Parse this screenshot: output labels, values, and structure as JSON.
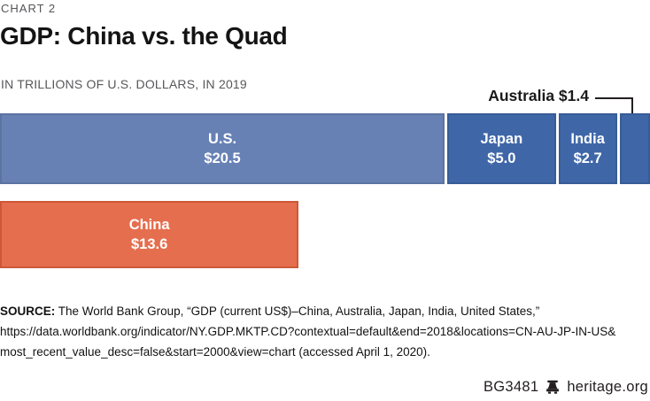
{
  "page": {
    "kicker": "CHART 2",
    "title": "GDP: China vs. the Quad",
    "subtitle": "IN TRILLIONS OF U.S. DOLLARS, IN 2019"
  },
  "chart_data": {
    "type": "bar",
    "orientation": "horizontal",
    "stacked": true,
    "title": "GDP: China vs. the Quad",
    "subtitle": "IN TRILLIONS OF U.S. DOLLARS, IN 2019",
    "unit": "trillions of U.S. dollars",
    "year": 2019,
    "gridlines": false,
    "x_scale_total": 29.6,
    "series": [
      {
        "name": "Quad",
        "segments": [
          {
            "label": "U.S.",
            "value": 20.5,
            "display": "$20.5",
            "color": "#6781b5"
          },
          {
            "label": "Japan",
            "value": 5.0,
            "display": "$5.0",
            "color": "#3f67a8"
          },
          {
            "label": "India",
            "value": 2.7,
            "display": "$2.7",
            "color": "#3f67a8"
          },
          {
            "label": "Australia",
            "value": 1.4,
            "display": "$1.4",
            "color": "#3f67a8",
            "label_outside": true
          }
        ]
      },
      {
        "name": "China",
        "segments": [
          {
            "label": "China",
            "value": 13.6,
            "display": "$13.6",
            "color": "#e56e4e"
          }
        ]
      }
    ],
    "callout": {
      "text": "Australia $1.4"
    }
  },
  "source": {
    "label": "SOURCE:",
    "lines": [
      " The World Bank Group, “GDP (current US$)–China, Australia, Japan, India, United States,”",
      "https://data.worldbank.org/indicator/NY.GDP.MKTP.CD?contextual=default&end=2018&locations=CN-AU-JP-IN-US&",
      "most_recent_value_desc=false&start=2000&view=chart (accessed April 1, 2020)."
    ]
  },
  "footer": {
    "report_id": "BG3481",
    "site": "heritage.org"
  },
  "colors": {
    "us_blue": "#6781b5",
    "quad_blue": "#3f67a8",
    "china_orange": "#e56e4e",
    "text_dark": "#1b1b1b",
    "text_gray": "#58585a",
    "line_dark": "#231f20"
  }
}
